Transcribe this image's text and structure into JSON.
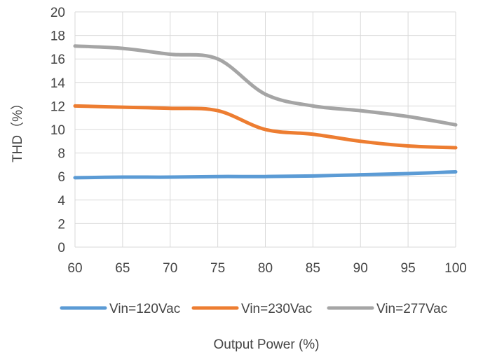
{
  "chart_data": {
    "type": "line",
    "xlabel": "Output Power (%)",
    "ylabel": "THD（%）",
    "x": [
      60,
      65,
      70,
      75,
      80,
      85,
      90,
      95,
      100
    ],
    "xlim": [
      60,
      100
    ],
    "ylim": [
      0,
      20
    ],
    "x_ticks": [
      "60",
      "65",
      "70",
      "75",
      "80",
      "85",
      "90",
      "95",
      "100"
    ],
    "y_ticks": [
      "0",
      "2",
      "4",
      "6",
      "8",
      "10",
      "12",
      "14",
      "16",
      "18",
      "20"
    ],
    "grid": true,
    "legend_position": "bottom",
    "series": [
      {
        "name": "Vin=120Vac",
        "color": "#5b9bd5",
        "values": [
          5.9,
          5.95,
          5.95,
          6.0,
          6.0,
          6.05,
          6.15,
          6.25,
          6.4
        ]
      },
      {
        "name": "Vin=230Vac",
        "color": "#ed7d31",
        "values": [
          12.0,
          11.9,
          11.8,
          11.6,
          10.0,
          9.6,
          9.0,
          8.6,
          8.45
        ]
      },
      {
        "name": "Vin=277Vac",
        "color": "#a5a5a5",
        "values": [
          17.1,
          16.9,
          16.4,
          16.0,
          13.0,
          12.0,
          11.6,
          11.1,
          10.4
        ]
      }
    ]
  }
}
